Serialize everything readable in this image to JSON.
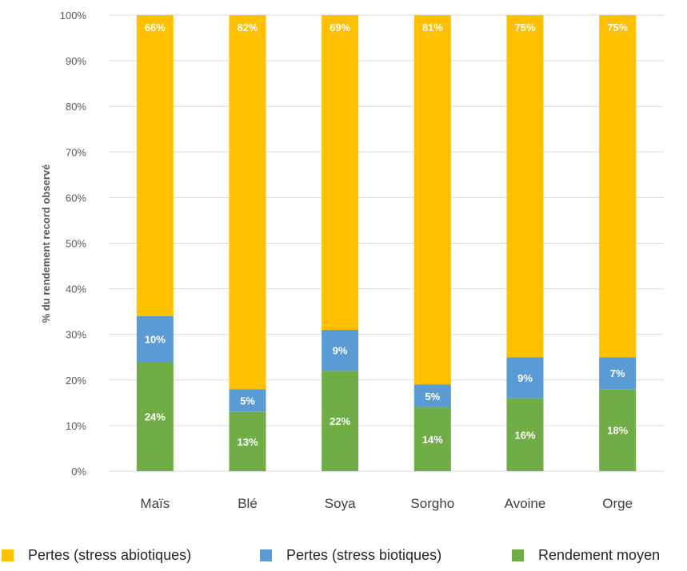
{
  "chart_data": {
    "type": "bar",
    "stacked": true,
    "ylabel": "% du rendement record observé",
    "ylim": [
      0,
      100
    ],
    "yticks": [
      "0%",
      "10%",
      "20%",
      "30%",
      "40%",
      "50%",
      "60%",
      "70%",
      "80%",
      "90%",
      "100%"
    ],
    "grid": true,
    "legend_position": "bottom",
    "categories": [
      "Maïs",
      "Blé",
      "Soya",
      "Sorgho",
      "Avoine",
      "Orge"
    ],
    "series": [
      {
        "name": "Rendement moyen",
        "color": "#70ad47",
        "values": [
          24,
          13,
          22,
          14,
          16,
          18
        ],
        "labels": [
          "24%",
          "13%",
          "22%",
          "14%",
          "16%",
          "18%"
        ]
      },
      {
        "name": "Pertes (stress biotiques)",
        "color": "#5b9bd5",
        "values": [
          10,
          5,
          9,
          5,
          9,
          7
        ],
        "labels": [
          "10%",
          "5%",
          "9%",
          "5%",
          "9%",
          "7%"
        ]
      },
      {
        "name": "Pertes (stress abiotiques)",
        "color": "#ffc000",
        "values": [
          66,
          82,
          69,
          81,
          75,
          75
        ],
        "labels": [
          "66%",
          "82%",
          "69%",
          "81%",
          "75%",
          "75%"
        ]
      }
    ],
    "legend_order": [
      "Pertes (stress abiotiques)",
      "Pertes (stress biotiques)",
      "Rendement moyen"
    ]
  }
}
